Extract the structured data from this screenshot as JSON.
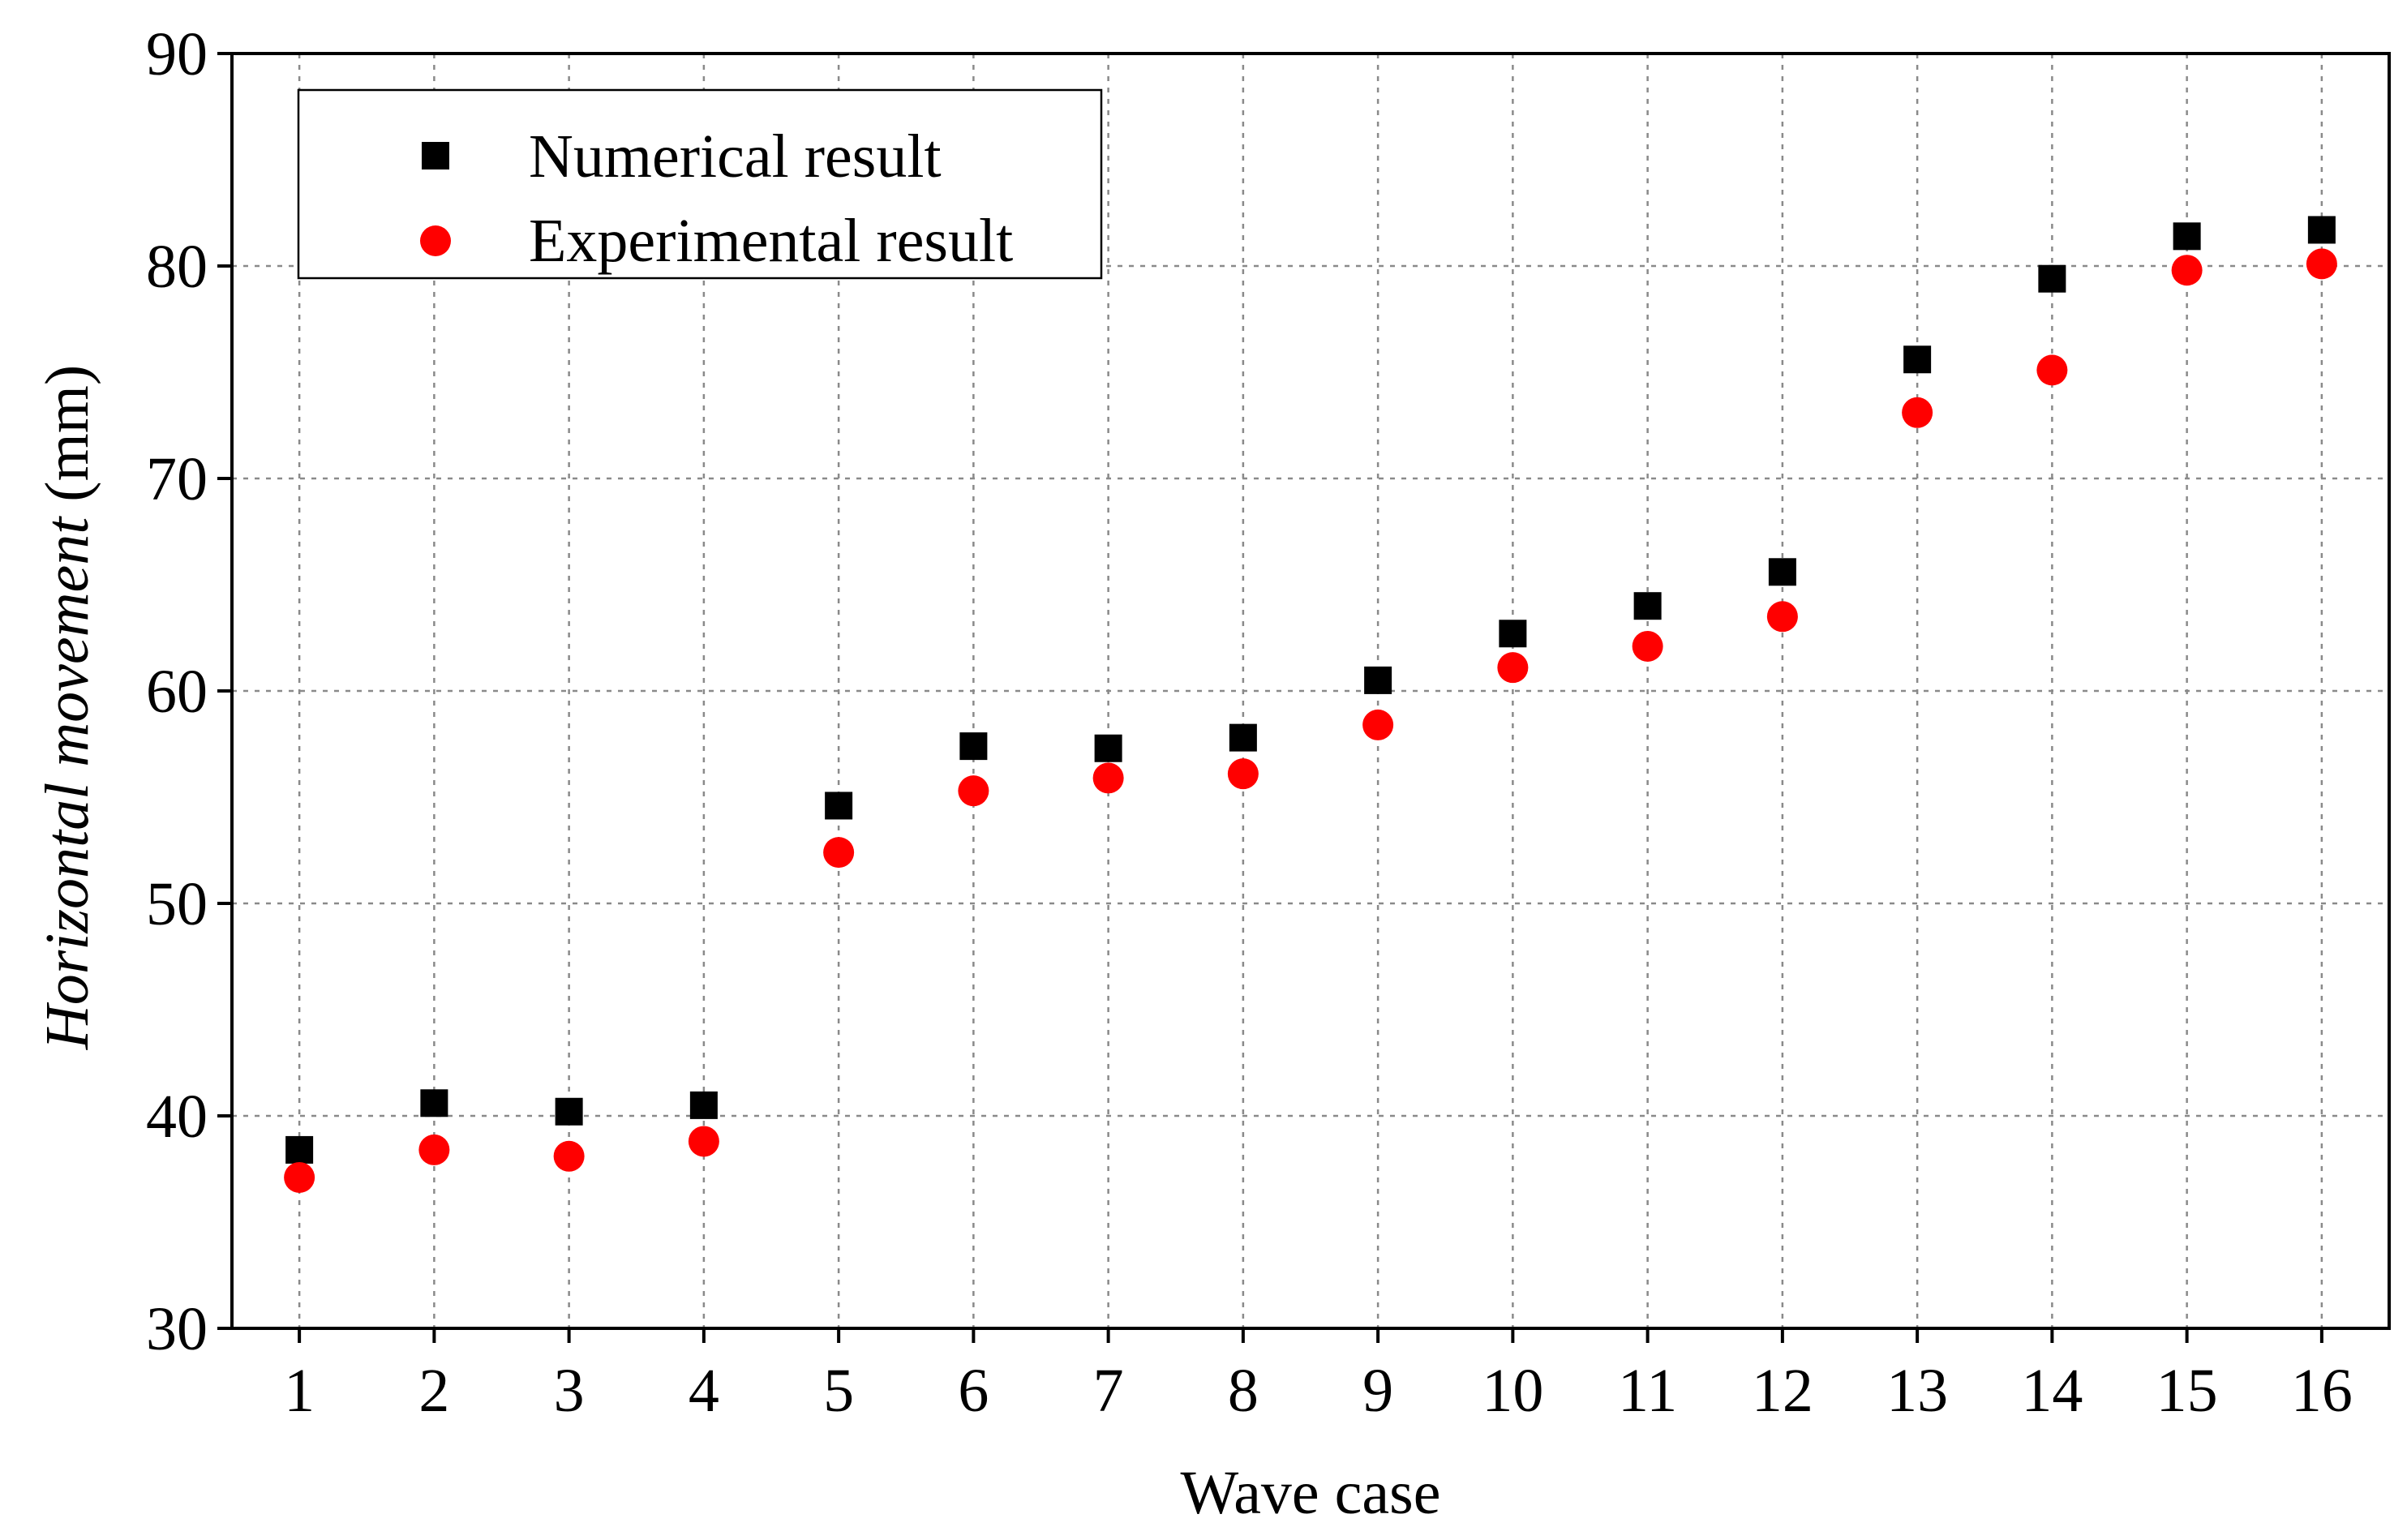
{
  "chart_data": {
    "type": "scatter",
    "title": "",
    "xlabel": "Wave case",
    "ylabel_italic": "Horizontal movement",
    "ylabel_unit": " (mm)",
    "x": [
      1,
      2,
      3,
      4,
      5,
      6,
      7,
      8,
      9,
      10,
      11,
      12,
      13,
      14,
      15,
      16
    ],
    "xticks": [
      "1",
      "2",
      "3",
      "4",
      "5",
      "6",
      "7",
      "8",
      "9",
      "10",
      "11",
      "12",
      "13",
      "14",
      "15",
      "16"
    ],
    "yticks": [
      "30",
      "40",
      "50",
      "60",
      "70",
      "80",
      "90"
    ],
    "ylim": [
      30,
      90
    ],
    "xlim": [
      0.5,
      16.5
    ],
    "grid": true,
    "legend_position": "top-left",
    "series": [
      {
        "name": "Numerical result",
        "marker": "square",
        "color": "#000000",
        "values": [
          38.4,
          40.6,
          40.2,
          40.5,
          54.6,
          57.4,
          57.3,
          57.8,
          60.5,
          62.7,
          64.0,
          65.6,
          75.6,
          79.4,
          81.4,
          81.7
        ]
      },
      {
        "name": "Experimental result",
        "marker": "circle",
        "color": "#ff0000",
        "values": [
          37.1,
          38.4,
          38.1,
          38.8,
          52.4,
          55.3,
          55.9,
          56.1,
          58.4,
          61.1,
          62.1,
          63.5,
          73.1,
          75.1,
          79.8,
          80.1
        ]
      }
    ]
  }
}
